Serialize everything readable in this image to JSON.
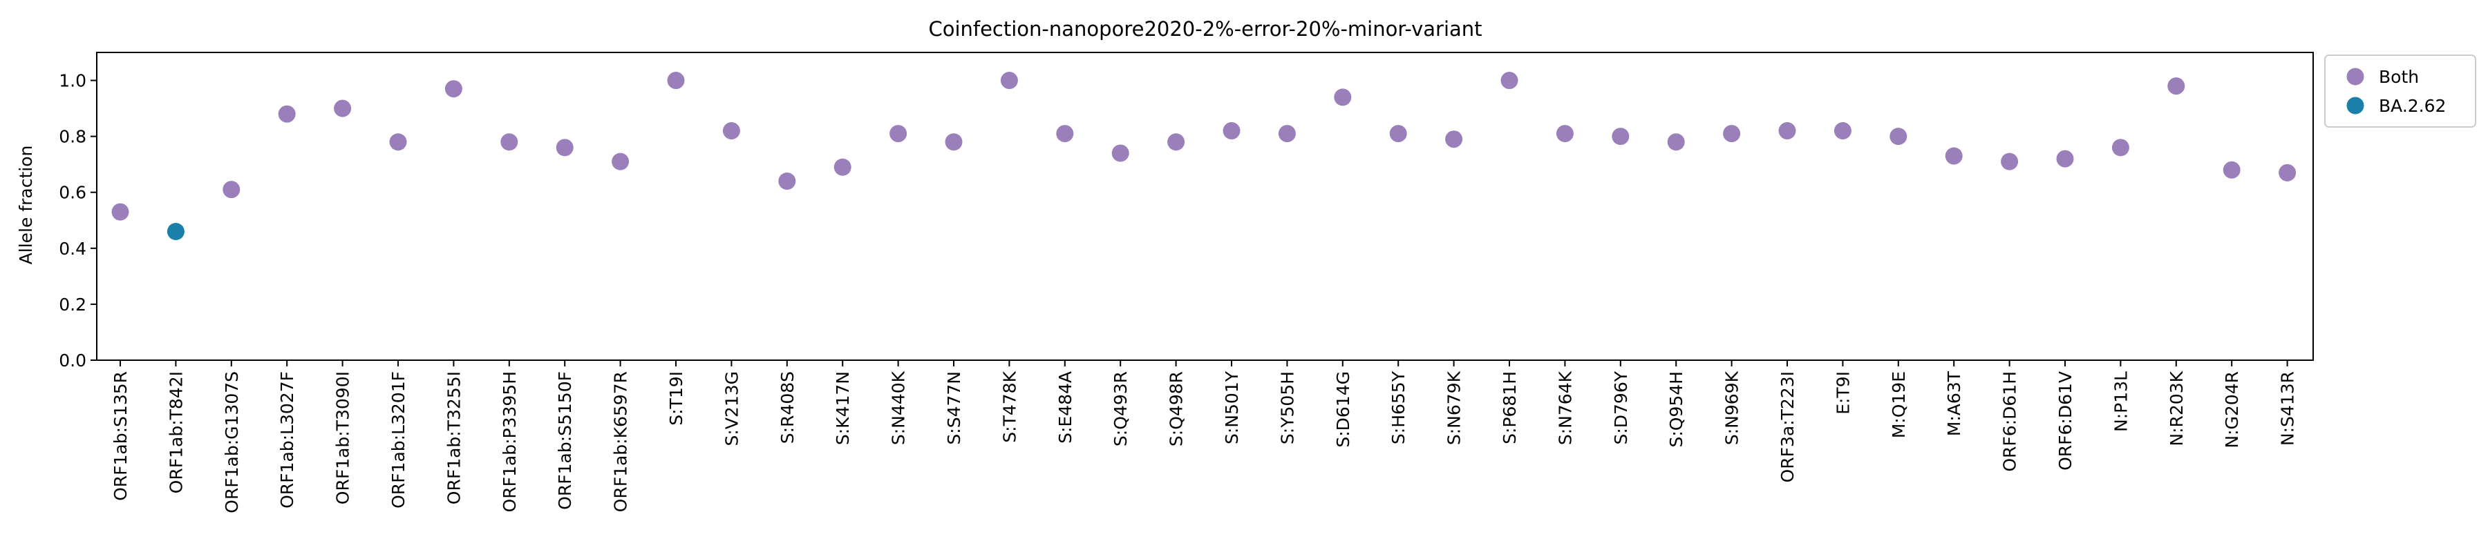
{
  "chart_data": {
    "type": "scatter",
    "title": "Coinfection-nanopore2020-2%-error-20%-minor-variant",
    "xlabel": "",
    "ylabel": "Allele fraction",
    "ylim": [
      0,
      1.1
    ],
    "yticks": [
      0.0,
      0.2,
      0.4,
      0.6,
      0.8,
      1.0
    ],
    "ytick_labels": [
      "0.0",
      "0.2",
      "0.4",
      "0.6",
      "0.8",
      "1.0"
    ],
    "grid": false,
    "legend_position": "outside top-right",
    "categories": [
      "ORF1ab:S135R",
      "ORF1ab:T842I",
      "ORF1ab:G1307S",
      "ORF1ab:L3027F",
      "ORF1ab:T3090I",
      "ORF1ab:L3201F",
      "ORF1ab:T3255I",
      "ORF1ab:P3395H",
      "ORF1ab:S5150F",
      "ORF1ab:K6597R",
      "S:T19I",
      "S:V213G",
      "S:R408S",
      "S:K417N",
      "S:N440K",
      "S:S477N",
      "S:T478K",
      "S:E484A",
      "S:Q493R",
      "S:Q498R",
      "S:N501Y",
      "S:Y505H",
      "S:D614G",
      "S:H655Y",
      "S:N679K",
      "S:P681H",
      "S:N764K",
      "S:D796Y",
      "S:Q954H",
      "S:N969K",
      "ORF3a:T223I",
      "E:T9I",
      "M:Q19E",
      "M:A63T",
      "ORF6:D61H",
      "ORF6:D61V",
      "N:P13L",
      "N:R203K",
      "N:G204R",
      "N:S413R"
    ],
    "series": [
      {
        "name": "Both",
        "color": "#9a7fba",
        "points": [
          {
            "x": "ORF1ab:S135R",
            "y": 0.53
          },
          {
            "x": "ORF1ab:G1307S",
            "y": 0.61
          },
          {
            "x": "ORF1ab:L3027F",
            "y": 0.88
          },
          {
            "x": "ORF1ab:T3090I",
            "y": 0.9
          },
          {
            "x": "ORF1ab:L3201F",
            "y": 0.78
          },
          {
            "x": "ORF1ab:T3255I",
            "y": 0.97
          },
          {
            "x": "ORF1ab:P3395H",
            "y": 0.78
          },
          {
            "x": "ORF1ab:S5150F",
            "y": 0.76
          },
          {
            "x": "ORF1ab:K6597R",
            "y": 0.71
          },
          {
            "x": "S:T19I",
            "y": 1.0
          },
          {
            "x": "S:V213G",
            "y": 0.82
          },
          {
            "x": "S:R408S",
            "y": 0.64
          },
          {
            "x": "S:K417N",
            "y": 0.69
          },
          {
            "x": "S:N440K",
            "y": 0.81
          },
          {
            "x": "S:S477N",
            "y": 0.78
          },
          {
            "x": "S:T478K",
            "y": 1.0
          },
          {
            "x": "S:E484A",
            "y": 0.81
          },
          {
            "x": "S:Q493R",
            "y": 0.74
          },
          {
            "x": "S:Q498R",
            "y": 0.78
          },
          {
            "x": "S:N501Y",
            "y": 0.82
          },
          {
            "x": "S:Y505H",
            "y": 0.81
          },
          {
            "x": "S:D614G",
            "y": 0.94
          },
          {
            "x": "S:H655Y",
            "y": 0.81
          },
          {
            "x": "S:N679K",
            "y": 0.79
          },
          {
            "x": "S:P681H",
            "y": 1.0
          },
          {
            "x": "S:N764K",
            "y": 0.81
          },
          {
            "x": "S:D796Y",
            "y": 0.8
          },
          {
            "x": "S:Q954H",
            "y": 0.78
          },
          {
            "x": "S:N969K",
            "y": 0.81
          },
          {
            "x": "ORF3a:T223I",
            "y": 0.82
          },
          {
            "x": "E:T9I",
            "y": 0.82
          },
          {
            "x": "M:Q19E",
            "y": 0.8
          },
          {
            "x": "M:A63T",
            "y": 0.73
          },
          {
            "x": "ORF6:D61H",
            "y": 0.71
          },
          {
            "x": "ORF6:D61V",
            "y": 0.72
          },
          {
            "x": "N:P13L",
            "y": 0.76
          },
          {
            "x": "N:R203K",
            "y": 0.98
          },
          {
            "x": "N:G204R",
            "y": 0.68
          },
          {
            "x": "N:S413R",
            "y": 0.67
          }
        ]
      },
      {
        "name": "BA.2.62",
        "color": "#1a80aa",
        "points": [
          {
            "x": "ORF1ab:T842I",
            "y": 0.46
          }
        ]
      }
    ]
  }
}
